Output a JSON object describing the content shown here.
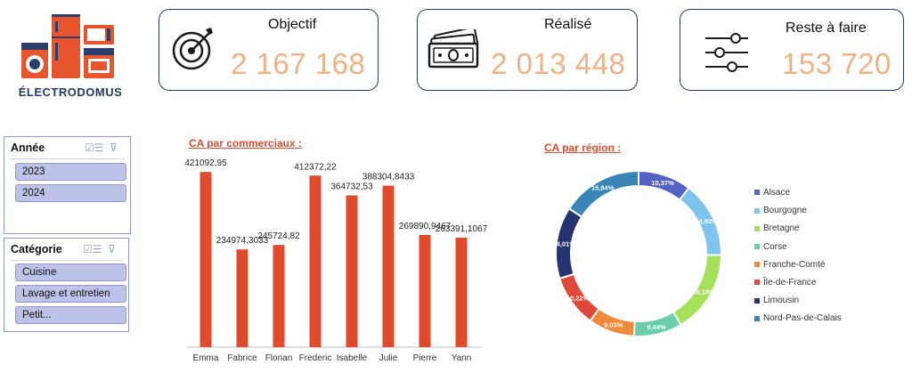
{
  "brand": {
    "name": "ÉLECTRODOMUS"
  },
  "kpis": [
    {
      "title": "Objectif",
      "value": "2 167 168",
      "icon": "target-icon"
    },
    {
      "title": "Réalisé",
      "value": "2 013 448",
      "icon": "money-icon"
    },
    {
      "title": "Reste à faire",
      "value": "153 720",
      "icon": "sliders-icon"
    }
  ],
  "slicers": [
    {
      "title": "Année",
      "items": [
        "2023",
        "2024"
      ]
    },
    {
      "title": "Catégorie",
      "items": [
        "Cuisine",
        "Lavage et entretien",
        "Petit..."
      ]
    }
  ],
  "chart_data": [
    {
      "type": "bar",
      "title": "CA par commerciaux :",
      "categories": [
        "Emma",
        "Fabrice",
        "Florian",
        "Frederic",
        "Isabelle",
        "Julie",
        "Pierre",
        "Yann"
      ],
      "values": [
        421092.95,
        234974.3033,
        245724.82,
        412372.22,
        364732.53,
        388304.8433,
        269890.9467,
        263391.1067
      ],
      "labels": [
        "421092,95",
        "234974,3033",
        "245724,82",
        "412372,22",
        "364732,53",
        "388304,8433",
        "269890,9467",
        "263391,1067"
      ],
      "color": "#e04b2e"
    },
    {
      "type": "pie",
      "title": "CA par région :",
      "categories": [
        "Alsace",
        "Bourgogne",
        "Bretagne",
        "Corse",
        "Franche-Comté",
        "Île-de-France",
        "Limousin",
        "Nord-Pas-de-Calais"
      ],
      "values": [
        10.37,
        14.92,
        16.18,
        9.44,
        9.03,
        10.22,
        14.01,
        15.84
      ],
      "labels": [
        "10,37%",
        "14,92%",
        "16,18%",
        "9,44%",
        "9,03%",
        "10,22%",
        "14,01%",
        "15,84%"
      ],
      "colors": [
        "#5462c6",
        "#7ec4ef",
        "#a4e05a",
        "#6ccdaa",
        "#ef8a3c",
        "#e0483a",
        "#25336e",
        "#3a85b8"
      ]
    }
  ]
}
